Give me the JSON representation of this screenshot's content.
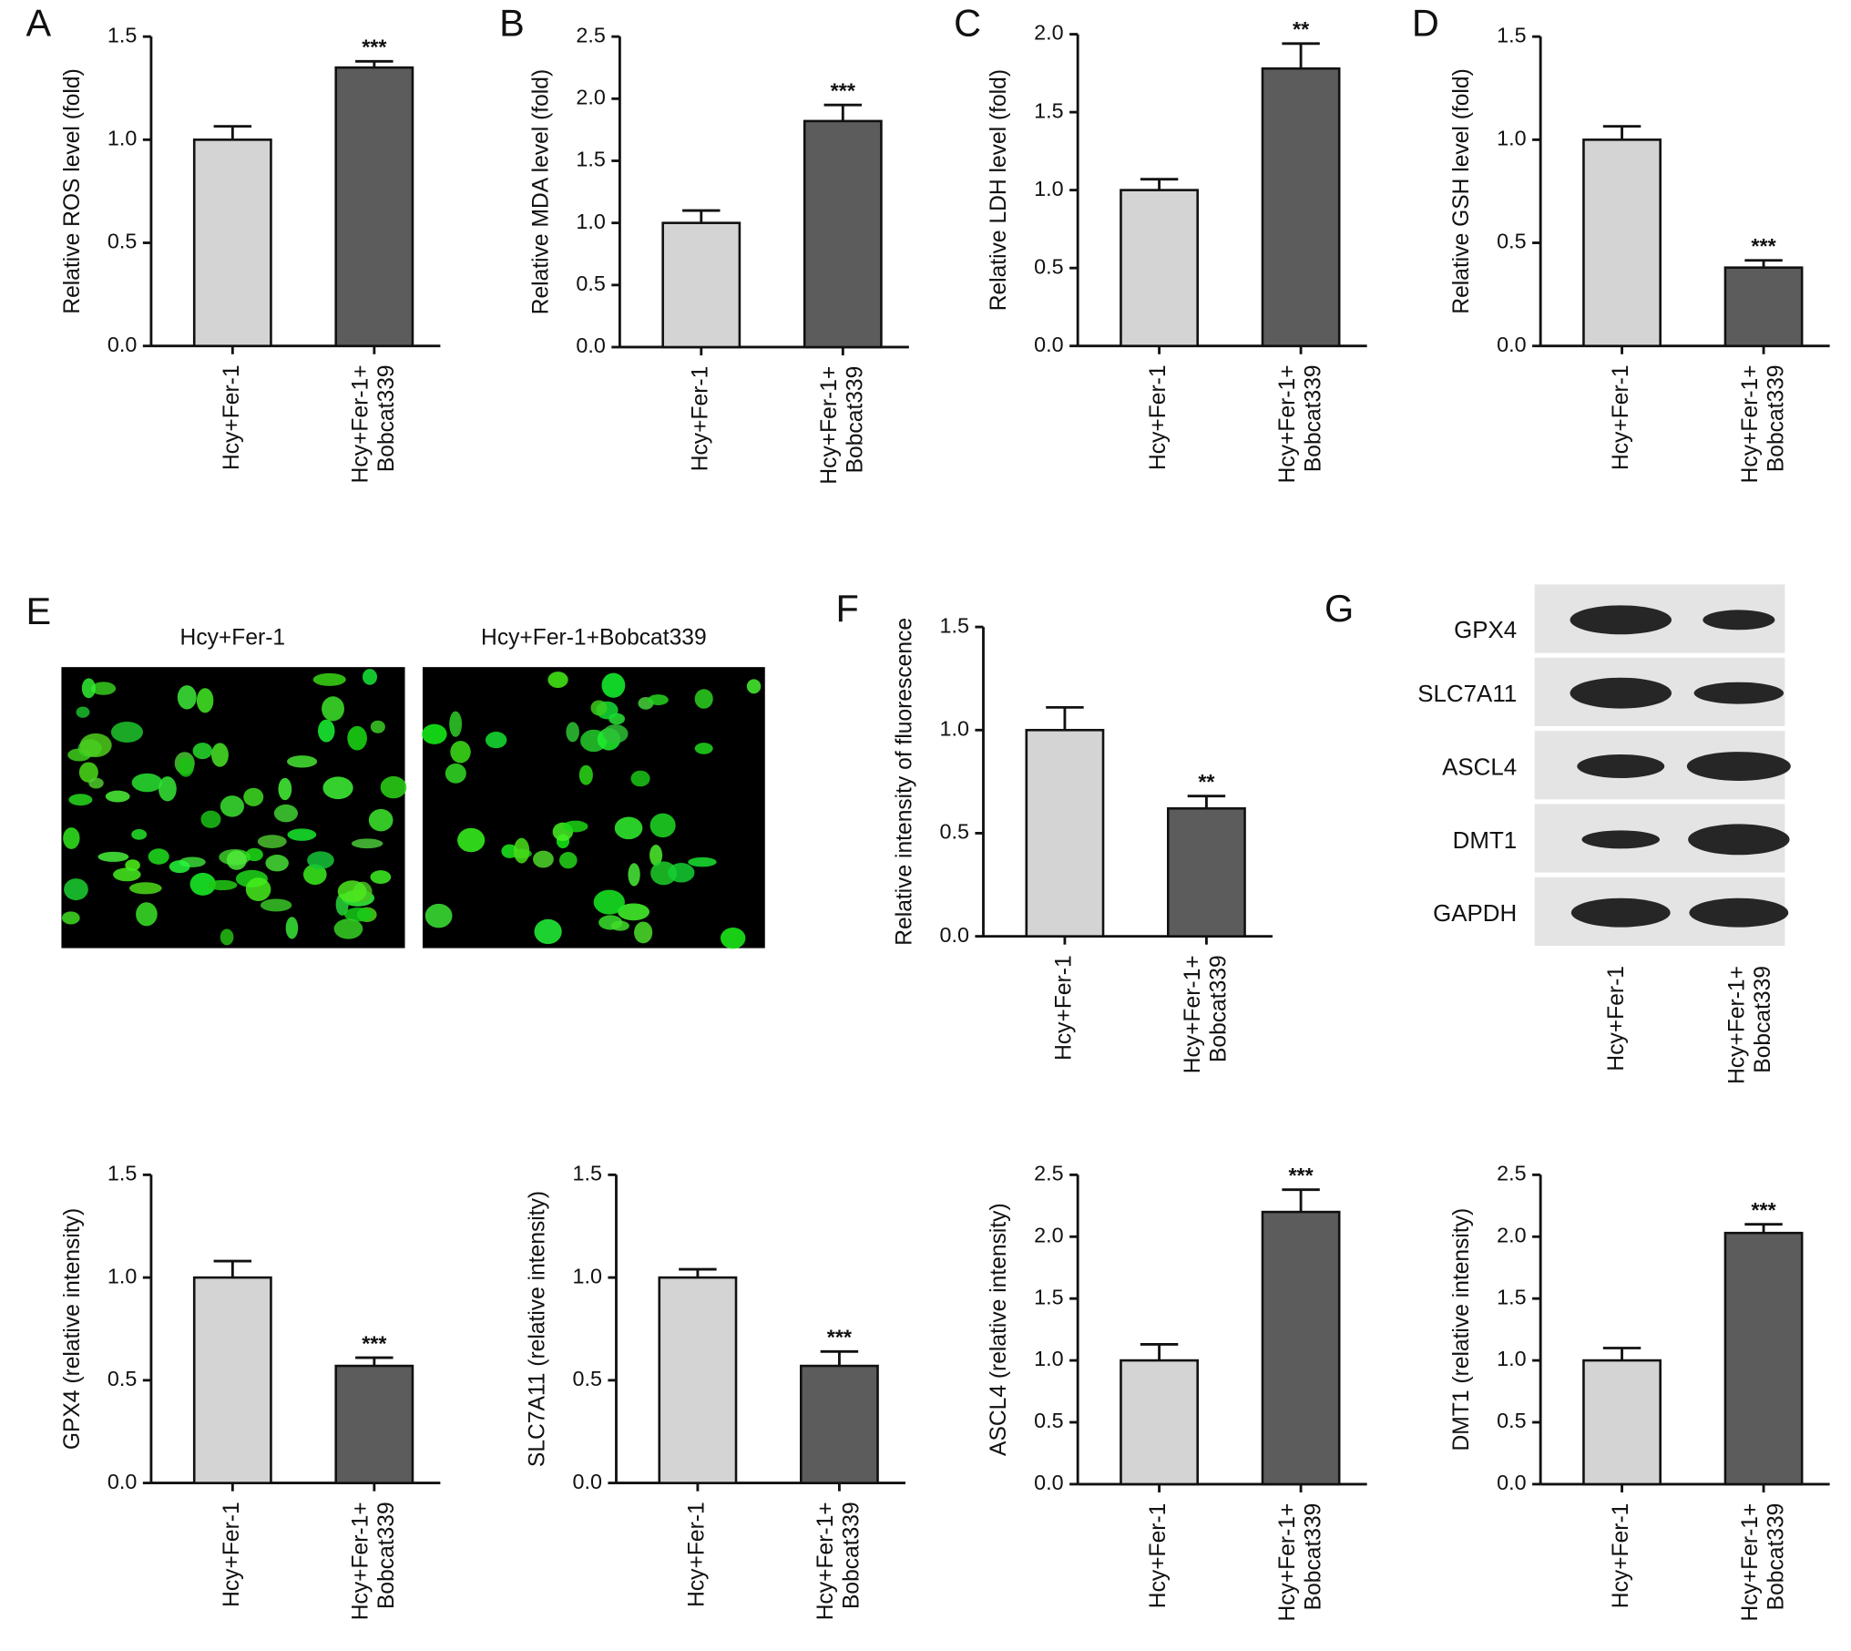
{
  "chart_data": [
    {
      "type": "bar",
      "panel": "A",
      "ylabel": "Relative ROS level (fold)",
      "categories": [
        "Hcy+Fer-1",
        "Hcy+Fer-1+\nBobcat339"
      ],
      "values": [
        1.0,
        1.35
      ],
      "errors": [
        0.065,
        0.03
      ],
      "significance": [
        null,
        "***"
      ],
      "colors": [
        "#d4d4d4",
        "#5c5c5c"
      ],
      "ylim": [
        0,
        1.5
      ],
      "yticks": [
        {
          "value": 0,
          "label": "0.0"
        },
        {
          "value": 0.5,
          "label": "0.5"
        },
        {
          "value": 1,
          "label": "1.0"
        },
        {
          "value": 1.5,
          "label": "1.5"
        }
      ]
    },
    {
      "type": "bar",
      "panel": "B",
      "ylabel": "Relative MDA level (fold)",
      "categories": [
        "Hcy+Fer-1",
        "Hcy+Fer-1+\nBobcat339"
      ],
      "values": [
        1.0,
        1.82
      ],
      "errors": [
        0.1,
        0.13
      ],
      "significance": [
        null,
        "***"
      ],
      "colors": [
        "#d4d4d4",
        "#5c5c5c"
      ],
      "ylim": [
        0,
        2.5
      ],
      "yticks": [
        {
          "value": 0,
          "label": "0.0"
        },
        {
          "value": 0.5,
          "label": "0.5"
        },
        {
          "value": 1,
          "label": "1.0"
        },
        {
          "value": 1.5,
          "label": "1.5"
        },
        {
          "value": 2,
          "label": "2.0"
        },
        {
          "value": 2.5,
          "label": "2.5"
        }
      ]
    },
    {
      "type": "bar",
      "panel": "C",
      "ylabel": "Relative LDH level (fold)",
      "categories": [
        "Hcy+Fer-1",
        "Hcy+Fer-1+\nBobcat339"
      ],
      "values": [
        1.0,
        1.78
      ],
      "errors": [
        0.07,
        0.16
      ],
      "significance": [
        null,
        "**"
      ],
      "colors": [
        "#d4d4d4",
        "#5c5c5c"
      ],
      "ylim": [
        0,
        2.0
      ],
      "yticks": [
        {
          "value": 0,
          "label": "0.0"
        },
        {
          "value": 0.5,
          "label": "0.5"
        },
        {
          "value": 1,
          "label": "1.0"
        },
        {
          "value": 1.5,
          "label": "1.5"
        },
        {
          "value": 2,
          "label": "2.0"
        }
      ]
    },
    {
      "type": "bar",
      "panel": "D",
      "ylabel": "Relative GSH level (fold)",
      "categories": [
        "Hcy+Fer-1",
        "Hcy+Fer-1+\nBobcat339"
      ],
      "values": [
        1.0,
        0.38
      ],
      "errors": [
        0.065,
        0.035
      ],
      "significance": [
        null,
        "***"
      ],
      "colors": [
        "#d4d4d4",
        "#5c5c5c"
      ],
      "ylim": [
        0,
        1.5
      ],
      "yticks": [
        {
          "value": 0,
          "label": "0.0"
        },
        {
          "value": 0.5,
          "label": "0.5"
        },
        {
          "value": 1,
          "label": "1.0"
        },
        {
          "value": 1.5,
          "label": "1.5"
        }
      ]
    },
    {
      "type": "bar",
      "panel": "F",
      "ylabel": "Relative intensity of fluorescence",
      "categories": [
        "Hcy+Fer-1",
        "Hcy+Fer-1+\nBobcat339"
      ],
      "values": [
        1.0,
        0.62
      ],
      "errors": [
        0.11,
        0.06
      ],
      "significance": [
        null,
        "**"
      ],
      "colors": [
        "#d4d4d4",
        "#5c5c5c"
      ],
      "ylim": [
        0,
        1.5
      ],
      "yticks": [
        {
          "value": 0,
          "label": "0.0"
        },
        {
          "value": 0.5,
          "label": "0.5"
        },
        {
          "value": 1,
          "label": "1.0"
        },
        {
          "value": 1.5,
          "label": "1.5"
        }
      ]
    },
    {
      "type": "bar",
      "ylabel": "GPX4 (relative intensity)",
      "categories": [
        "Hcy+Fer-1",
        "Hcy+Fer-1+\nBobcat339"
      ],
      "values": [
        1.0,
        0.57
      ],
      "errors": [
        0.08,
        0.04
      ],
      "significance": [
        null,
        "***"
      ],
      "colors": [
        "#d4d4d4",
        "#5c5c5c"
      ],
      "ylim": [
        0,
        1.5
      ],
      "yticks": [
        {
          "value": 0,
          "label": "0.0"
        },
        {
          "value": 0.5,
          "label": "0.5"
        },
        {
          "value": 1,
          "label": "1.0"
        },
        {
          "value": 1.5,
          "label": "1.5"
        }
      ]
    },
    {
      "type": "bar",
      "ylabel": "SLC7A11 (relative intensity)",
      "categories": [
        "Hcy+Fer-1",
        "Hcy+Fer-1+\nBobcat339"
      ],
      "values": [
        1.0,
        0.57
      ],
      "errors": [
        0.04,
        0.07
      ],
      "significance": [
        null,
        "***"
      ],
      "colors": [
        "#d4d4d4",
        "#5c5c5c"
      ],
      "ylim": [
        0,
        1.5
      ],
      "yticks": [
        {
          "value": 0,
          "label": "0.0"
        },
        {
          "value": 0.5,
          "label": "0.5"
        },
        {
          "value": 1,
          "label": "1.0"
        },
        {
          "value": 1.5,
          "label": "1.5"
        }
      ]
    },
    {
      "type": "bar",
      "ylabel": "ASCL4 (relative intensity)",
      "categories": [
        "Hcy+Fer-1",
        "Hcy+Fer-1+\nBobcat339"
      ],
      "values": [
        1.0,
        2.2
      ],
      "errors": [
        0.13,
        0.18
      ],
      "significance": [
        null,
        "***"
      ],
      "colors": [
        "#d4d4d4",
        "#5c5c5c"
      ],
      "ylim": [
        0,
        2.5
      ],
      "yticks": [
        {
          "value": 0,
          "label": "0.0"
        },
        {
          "value": 0.5,
          "label": "0.5"
        },
        {
          "value": 1,
          "label": "1.0"
        },
        {
          "value": 1.5,
          "label": "1.5"
        },
        {
          "value": 2,
          "label": "2.0"
        },
        {
          "value": 2.5,
          "label": "2.5"
        }
      ]
    },
    {
      "type": "bar",
      "ylabel": "DMT1 (relative intensity)",
      "categories": [
        "Hcy+Fer-1",
        "Hcy+Fer-1+\nBobcat339"
      ],
      "values": [
        1.0,
        2.03
      ],
      "errors": [
        0.1,
        0.07
      ],
      "significance": [
        null,
        "***"
      ],
      "colors": [
        "#d4d4d4",
        "#5c5c5c"
      ],
      "ylim": [
        0,
        2.5
      ],
      "yticks": [
        {
          "value": 0,
          "label": "0.0"
        },
        {
          "value": 0.5,
          "label": "0.5"
        },
        {
          "value": 1,
          "label": "1.0"
        },
        {
          "value": 1.5,
          "label": "1.5"
        },
        {
          "value": 2,
          "label": "2.0"
        },
        {
          "value": 2.5,
          "label": "2.5"
        }
      ]
    }
  ],
  "fluorescence": {
    "panel": "E",
    "titles": [
      "Hcy+Fer-1",
      "Hcy+Fer-1+Bobcat339"
    ]
  },
  "blot": {
    "panel": "G",
    "proteins": [
      "GPX4",
      "SLC7A11",
      "ASCL4",
      "DMT1",
      "GAPDH"
    ],
    "lanes": [
      "Hcy+Fer-1",
      "Hcy+Fer-1+\nBobcat339"
    ]
  }
}
